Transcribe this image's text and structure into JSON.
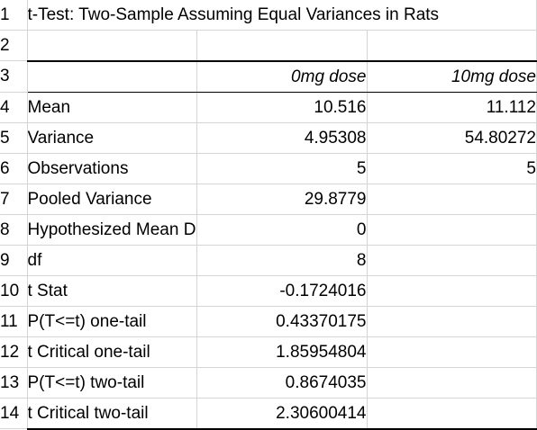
{
  "title": "t-Test: Two-Sample Assuming Equal Variances in Rats",
  "columns": {
    "group1": "0mg dose",
    "group2": "10mg dose"
  },
  "rows": [
    {
      "num": "4",
      "label": "Mean",
      "v1": "10.516",
      "v2": "11.112"
    },
    {
      "num": "5",
      "label": "Variance",
      "v1": "4.95308",
      "v2": "54.80272"
    },
    {
      "num": "6",
      "label": "Observations",
      "v1": "5",
      "v2": "5"
    },
    {
      "num": "7",
      "label": "Pooled Variance",
      "v1": "29.8779",
      "v2": ""
    },
    {
      "num": "8",
      "label": "Hypothesized Mean Difference",
      "v1": "0",
      "v2": ""
    },
    {
      "num": "9",
      "label": "df",
      "v1": "8",
      "v2": ""
    },
    {
      "num": "10",
      "label": "t Stat",
      "v1": "-0.1724016",
      "v2": ""
    },
    {
      "num": "11",
      "label": "P(T<=t) one-tail",
      "v1": "0.43370175",
      "v2": ""
    },
    {
      "num": "12",
      "label": "t Critical one-tail",
      "v1": "1.85954804",
      "v2": ""
    },
    {
      "num": "13",
      "label": "P(T<=t) two-tail",
      "v1": "0.8674035",
      "v2": ""
    },
    {
      "num": "14",
      "label": "t Critical two-tail",
      "v1": "2.30600414",
      "v2": ""
    }
  ],
  "row_numbers": {
    "r1": "1",
    "r2": "2",
    "r3": "3"
  }
}
